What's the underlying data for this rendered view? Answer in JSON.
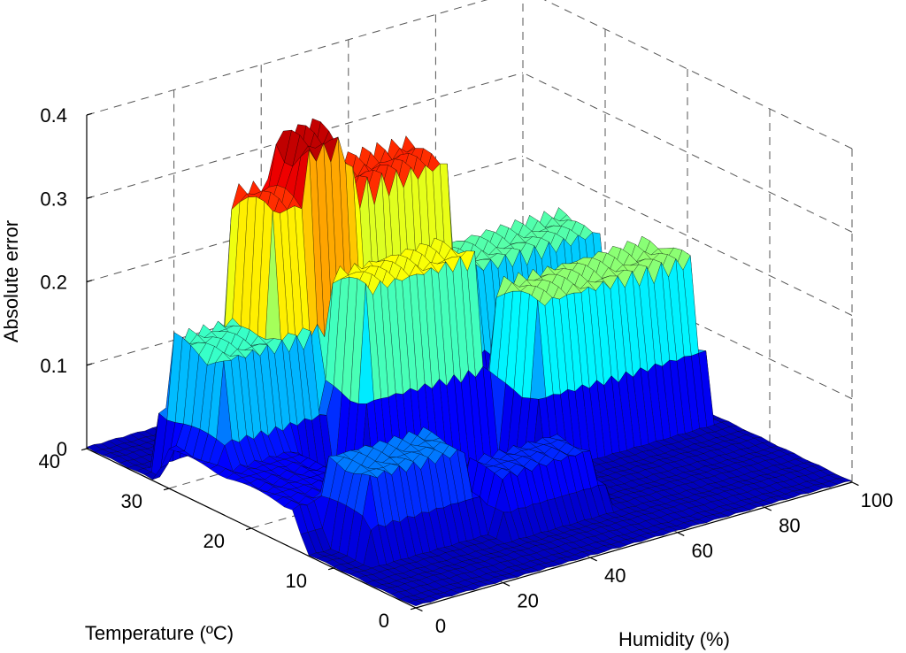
{
  "chart_data": {
    "type": "surface",
    "title": "",
    "xlabel": "Humidity (%)",
    "ylabel": "Temperature (ºC)",
    "zlabel": "Absolute error",
    "xlim": [
      0,
      100
    ],
    "ylim": [
      0,
      40
    ],
    "zlim": [
      0,
      0.4
    ],
    "x_ticks": [
      "0",
      "20",
      "40",
      "60",
      "80",
      "100"
    ],
    "y_ticks": [
      "0",
      "10",
      "20",
      "30",
      "40"
    ],
    "z_ticks": [
      "0",
      "0.1",
      "0.2",
      "0.3",
      "0.4"
    ],
    "grid": true,
    "colormap": "jet",
    "colormap_colors": [
      "#00008f",
      "#0000ff",
      "#00ffff",
      "#ffff00",
      "#ff0000",
      "#800000"
    ],
    "features": [
      {
        "humidity": [
          20,
          60
        ],
        "temperature": [
          28,
          33
        ],
        "peak_error": 0.32
      },
      {
        "humidity": [
          28,
          38
        ],
        "temperature": [
          28,
          32
        ],
        "peak_error": 0.38
      },
      {
        "humidity": [
          30,
          55
        ],
        "temperature": [
          22,
          26
        ],
        "peak_error": 0.24
      },
      {
        "humidity": [
          60,
          95
        ],
        "temperature": [
          17,
          22
        ],
        "peak_error": 0.2
      },
      {
        "humidity": [
          45,
          95
        ],
        "temperature": [
          28,
          33
        ],
        "peak_error": 0.18
      },
      {
        "humidity": [
          5,
          25
        ],
        "temperature": [
          26,
          32
        ],
        "peak_error": 0.17
      },
      {
        "humidity": [
          8,
          30
        ],
        "temperature": [
          10,
          15
        ],
        "peak_error": 0.1
      },
      {
        "humidity": [
          35,
          55
        ],
        "temperature": [
          8,
          12
        ],
        "peak_error": 0.07
      },
      {
        "humidity": [
          0,
          18
        ],
        "temperature": [
          15,
          30
        ],
        "peak_error": 0.05
      }
    ]
  }
}
